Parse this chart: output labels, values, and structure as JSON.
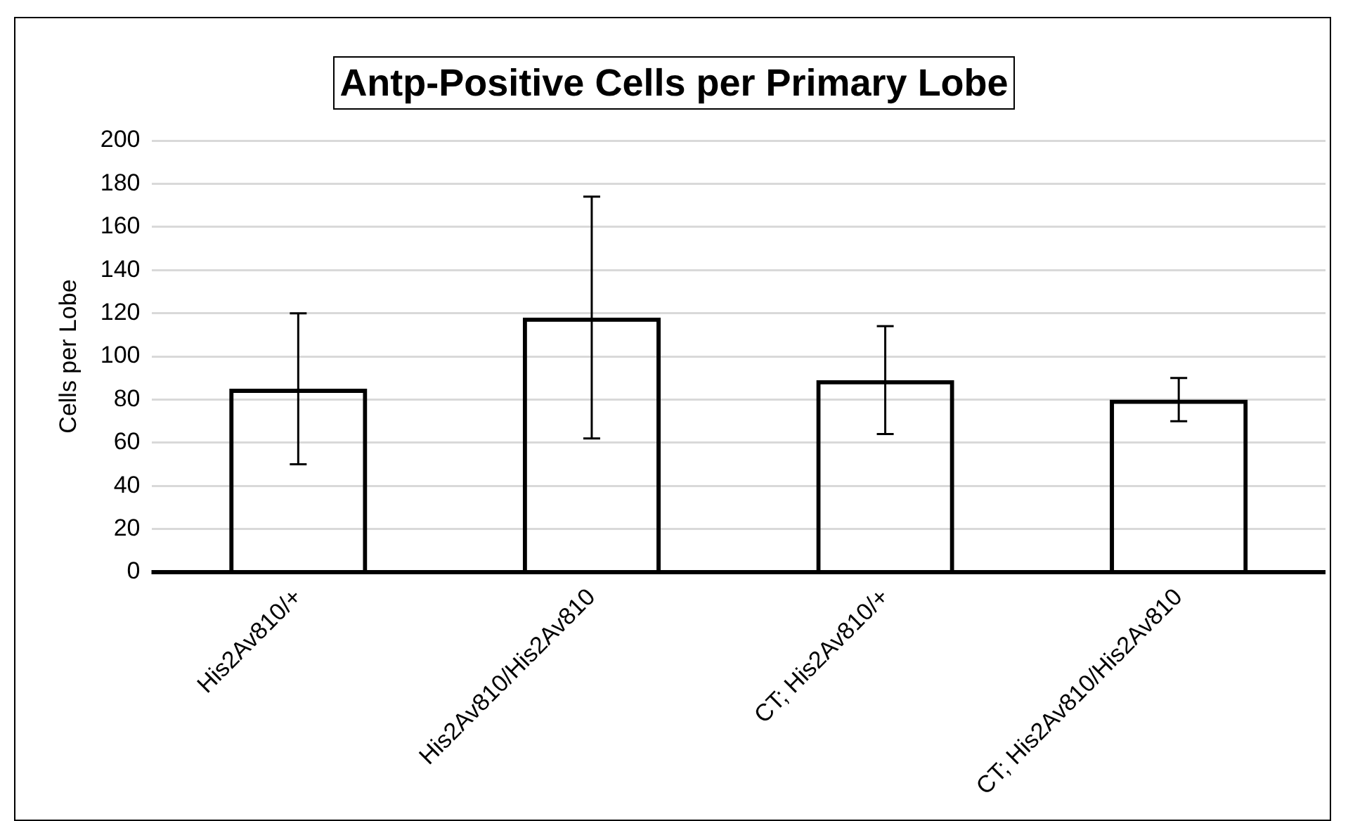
{
  "chart_data": {
    "type": "bar",
    "title": "Antp-Positive Cells per Primary Lobe",
    "ylabel": "Cells per Lobe",
    "categories": [
      "His2Av810/+",
      "His2Av810/His2Av810",
      "CT; His2Av810/+",
      "CT; His2Av810/His2Av810"
    ],
    "values": [
      85,
      118,
      89,
      80
    ],
    "errors": [
      35,
      56,
      25,
      10
    ],
    "color": "#000000",
    "ylim": [
      0,
      200
    ],
    "yticks": [
      0,
      20,
      40,
      60,
      80,
      100,
      120,
      140,
      160,
      180,
      200
    ],
    "grid": "y",
    "legend": false
  }
}
